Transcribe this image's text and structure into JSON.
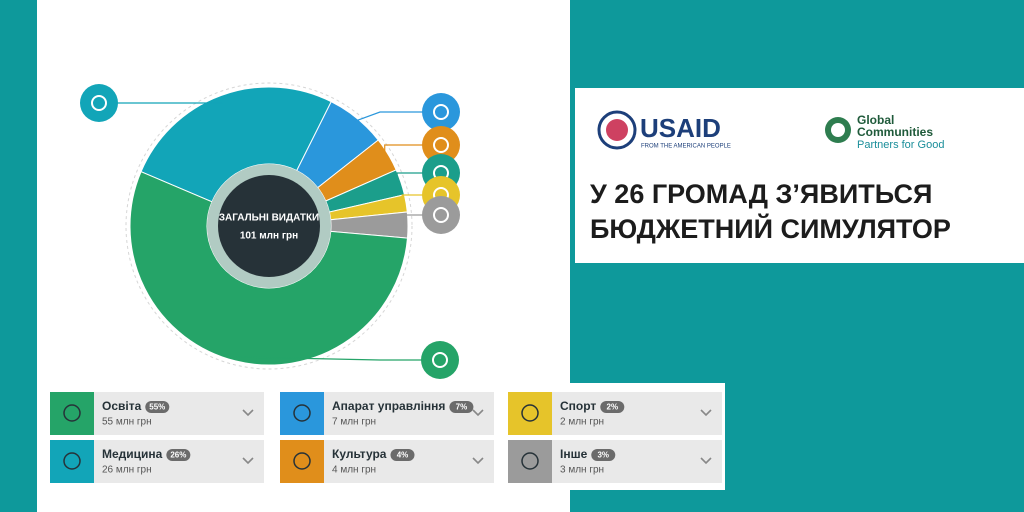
{
  "chart_data": {
    "type": "pie",
    "center_title": "ЗАГАЛЬНІ ВИДАТКИ",
    "center_value": "101 млн грн",
    "categories": [
      "Освіта",
      "Медицина",
      "Апарат управління",
      "Культура",
      "Спорт",
      "Інше",
      null
    ],
    "values": [
      55,
      26,
      7,
      4,
      2,
      3,
      3
    ],
    "value_labels": [
      "55%",
      "26%",
      "7%",
      "4%",
      "2%",
      "3%",
      null
    ],
    "amount_labels": [
      "55 млн грн",
      "26 млн грн",
      "7 млн грн",
      "4 млн грн",
      "2 млн грн",
      "3 млн грн",
      null
    ],
    "colors": [
      "#25a468",
      "#12a5b8",
      "#2a97dc",
      "#e08e1b",
      "#e6c42a",
      "#9b9b9b",
      "#1b9e8b"
    ]
  },
  "headline": [
    "У 26 ГРОМАД З’ЯВИТЬСЯ",
    "БЮДЖЕТНИЙ СИМУЛЯТОР"
  ],
  "logos": {
    "usaid": "USAID",
    "usaid_tagline": "FROM THE AMERICAN PEOPLE",
    "gc_name": [
      "Global",
      "Communities"
    ],
    "gc_tagline": "Partners for Good"
  }
}
